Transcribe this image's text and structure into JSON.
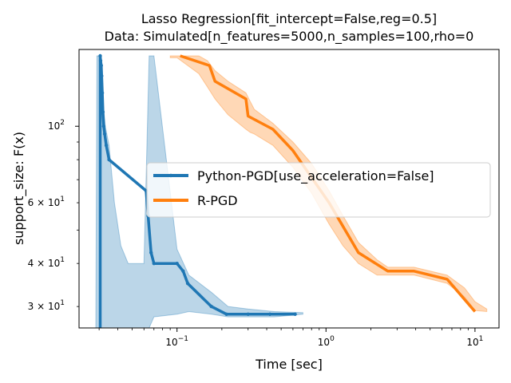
{
  "chart_data": {
    "type": "line",
    "title_line1": "Lasso Regression[fit_intercept=False,reg=0.5]",
    "title_line2": "Data: Simulated[n_features=5000,n_samples=100,rho=0",
    "xlabel": "Time [sec]",
    "ylabel": "support_size: F(x)",
    "xscale": "log",
    "yscale": "log",
    "xlim": [
      0.022,
      14.5
    ],
    "ylim": [
      26,
      167
    ],
    "grid": false,
    "legend_position": "center-right",
    "x_ticks": [
      {
        "value": 0.1,
        "base": "10",
        "exp": "−1"
      },
      {
        "value": 1,
        "base": "10",
        "exp": "0"
      },
      {
        "value": 10,
        "base": "10",
        "exp": "1"
      }
    ],
    "y_ticks": [
      {
        "value": 30,
        "base": "3 × 10",
        "exp": "1"
      },
      {
        "value": 40,
        "base": "4 × 10",
        "exp": "1"
      },
      {
        "value": 60,
        "base": "6 × 10",
        "exp": "1"
      },
      {
        "value": 100,
        "base": "10",
        "exp": "2"
      }
    ],
    "series": [
      {
        "name": "Python-PGD[use_acceleration=False]",
        "color": "#1f77b4",
        "markers": true,
        "x": [
          0.0305,
          0.0305,
          0.0307,
          0.031,
          0.0312,
          0.0315,
          0.0318,
          0.0322,
          0.0327,
          0.0335,
          0.035,
          0.062,
          0.064,
          0.067,
          0.07,
          0.1,
          0.11,
          0.118,
          0.17,
          0.215,
          0.3,
          0.42,
          0.62
        ],
        "y": [
          20,
          160,
          155,
          150,
          140,
          125,
          110,
          100,
          95,
          88,
          80,
          65,
          55,
          43,
          40,
          40,
          38,
          35,
          30,
          28.5,
          28.5,
          28.5,
          28.5
        ],
        "band_upper": [
          20,
          160,
          160,
          160,
          160,
          160,
          160,
          160,
          160,
          160,
          160,
          160,
          160,
          160,
          160,
          160,
          160,
          160,
          160,
          160,
          160,
          160,
          160
        ],
        "band_lower": [
          20,
          20,
          20,
          20,
          20,
          20,
          20,
          20,
          20,
          20,
          20,
          20,
          20,
          20,
          20,
          20,
          20,
          20,
          20,
          20,
          20,
          20,
          20
        ],
        "band_x": [
          0.0285,
          0.029,
          0.0305,
          0.031,
          0.0315,
          0.032,
          0.033,
          0.035,
          0.038,
          0.042,
          0.047,
          0.06,
          0.065,
          0.07,
          0.1,
          0.12,
          0.17,
          0.22,
          0.3,
          0.45,
          0.7
        ],
        "band_hi": [
          26,
          160,
          160,
          150,
          130,
          115,
          100,
          88,
          60,
          45,
          40,
          40,
          160,
          160,
          44,
          37,
          33,
          30,
          29.5,
          29,
          28.8
        ],
        "band_lo": [
          26,
          26,
          26,
          26,
          26,
          26,
          26,
          26,
          26,
          26,
          26,
          26,
          26,
          28,
          28.5,
          29,
          28.5,
          28,
          28,
          28,
          28.5
        ]
      },
      {
        "name": "R-PGD",
        "color": "#ff7f0e",
        "markers": false,
        "x": [
          0.105,
          0.165,
          0.18,
          0.29,
          0.3,
          0.44,
          0.6,
          1.05,
          1.65,
          2.6,
          3.9,
          6.5,
          10
        ],
        "y": [
          160,
          150,
          135,
          120,
          107,
          98,
          85,
          60,
          43,
          38,
          38,
          36,
          29
        ],
        "band_x": [
          0.09,
          0.1,
          0.14,
          0.16,
          0.18,
          0.22,
          0.29,
          0.31,
          0.33,
          0.44,
          0.6,
          0.8,
          1.05,
          1.3,
          1.65,
          2.2,
          2.6,
          3.9,
          6.5,
          8.5,
          10,
          12
        ],
        "band_hi": [
          160,
          160,
          160,
          155,
          145,
          135,
          125,
          118,
          112,
          102,
          90,
          78,
          65,
          55,
          46,
          41,
          39,
          39,
          37,
          34,
          31,
          29.5
        ],
        "band_lo": [
          158,
          158,
          142,
          130,
          120,
          108,
          98,
          96,
          95,
          88,
          76,
          64,
          52,
          45,
          40,
          37,
          37,
          37,
          35,
          32,
          29.2,
          29
        ]
      }
    ]
  }
}
